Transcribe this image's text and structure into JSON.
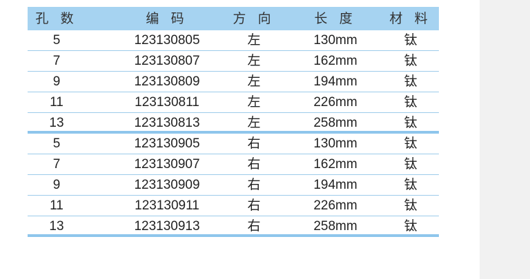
{
  "table": {
    "headers": [
      "孔 数",
      "编 码",
      "方 向",
      "长 度",
      "材 料"
    ],
    "rows": [
      [
        "5",
        "123130805",
        "左",
        "130mm",
        "钛"
      ],
      [
        "7",
        "123130807",
        "左",
        "162mm",
        "钛"
      ],
      [
        "9",
        "123130809",
        "左",
        "194mm",
        "钛"
      ],
      [
        "11",
        "123130811",
        "左",
        "226mm",
        "钛"
      ],
      [
        "13",
        "123130813",
        "左",
        "258mm",
        "钛"
      ],
      [
        "5",
        "123130905",
        "右",
        "130mm",
        "钛"
      ],
      [
        "7",
        "123130907",
        "右",
        "162mm",
        "钛"
      ],
      [
        "9",
        "123130909",
        "右",
        "194mm",
        "钛"
      ],
      [
        "11",
        "123130911",
        "右",
        "226mm",
        "钛"
      ],
      [
        "13",
        "123130913",
        "右",
        "258mm",
        "钛"
      ]
    ]
  },
  "colors": {
    "header": "#a6d3f1",
    "rule": "#8ec6ec",
    "side_panel": "#f1f1f1"
  }
}
